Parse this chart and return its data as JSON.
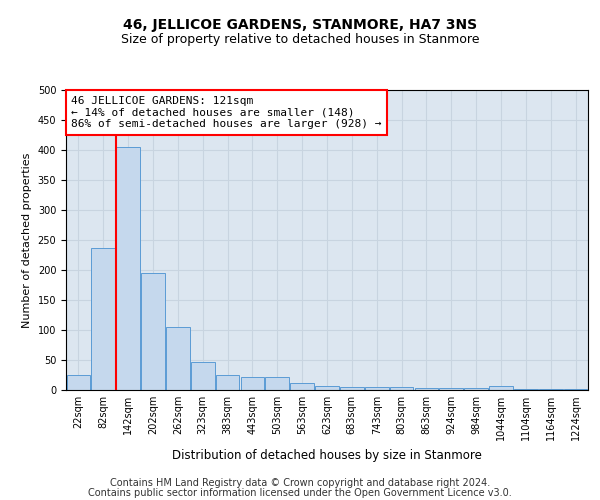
{
  "title": "46, JELLICOE GARDENS, STANMORE, HA7 3NS",
  "subtitle": "Size of property relative to detached houses in Stanmore",
  "xlabel": "Distribution of detached houses by size in Stanmore",
  "ylabel": "Number of detached properties",
  "bin_labels": [
    "22sqm",
    "82sqm",
    "142sqm",
    "202sqm",
    "262sqm",
    "323sqm",
    "383sqm",
    "443sqm",
    "503sqm",
    "563sqm",
    "623sqm",
    "683sqm",
    "743sqm",
    "803sqm",
    "863sqm",
    "924sqm",
    "984sqm",
    "1044sqm",
    "1104sqm",
    "1164sqm",
    "1224sqm"
  ],
  "bar_heights": [
    25,
    237,
    405,
    195,
    105,
    47,
    25,
    22,
    21,
    12,
    7,
    5,
    5,
    5,
    3,
    3,
    3,
    7,
    2,
    1,
    1
  ],
  "bar_color": "#c5d8ed",
  "bar_edge_color": "#5b9bd5",
  "bar_width": 0.95,
  "red_line_x": 1.5,
  "annotation_text": "46 JELLICOE GARDENS: 121sqm\n← 14% of detached houses are smaller (148)\n86% of semi-detached houses are larger (928) →",
  "annotation_box_color": "white",
  "annotation_box_edge_color": "red",
  "ylim": [
    0,
    500
  ],
  "yticks": [
    0,
    50,
    100,
    150,
    200,
    250,
    300,
    350,
    400,
    450,
    500
  ],
  "grid_color": "#c8d4e0",
  "background_color": "#dce6f0",
  "footer_line1": "Contains HM Land Registry data © Crown copyright and database right 2024.",
  "footer_line2": "Contains public sector information licensed under the Open Government Licence v3.0.",
  "title_fontsize": 10,
  "subtitle_fontsize": 9,
  "xlabel_fontsize": 8.5,
  "ylabel_fontsize": 8,
  "tick_fontsize": 7,
  "annotation_fontsize": 8,
  "footer_fontsize": 7
}
